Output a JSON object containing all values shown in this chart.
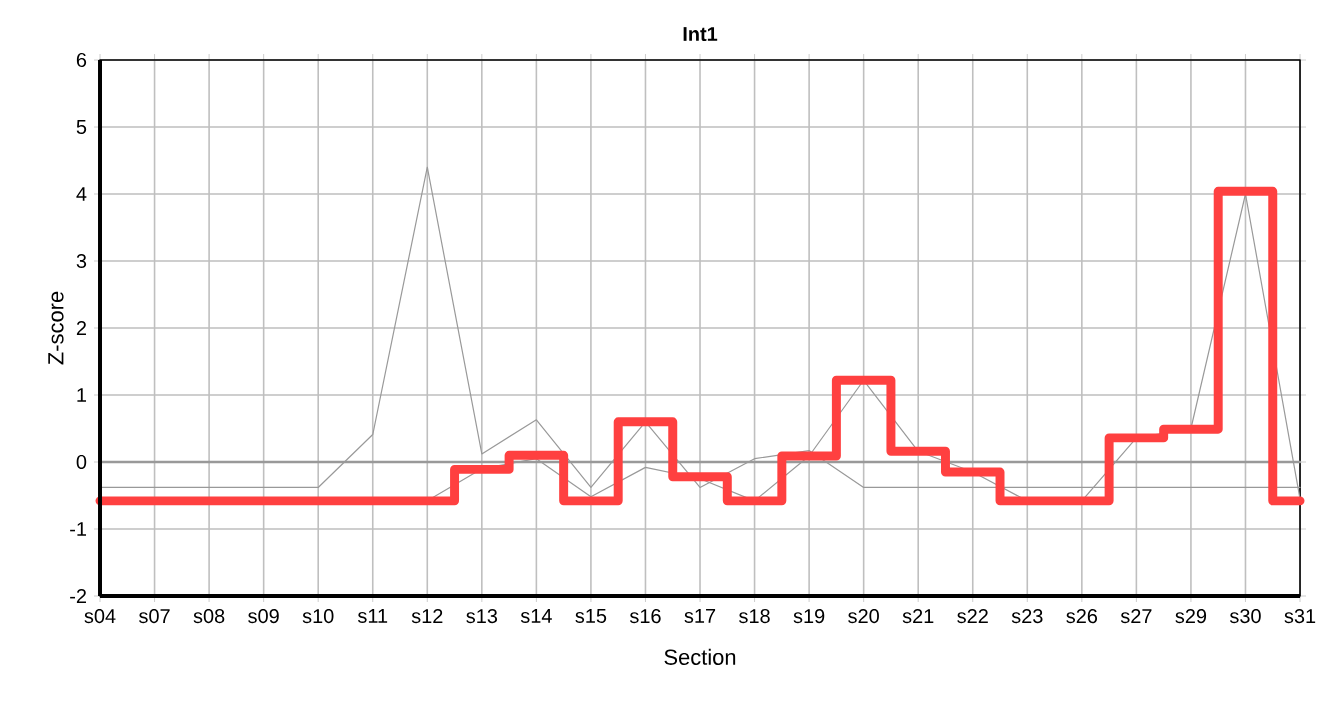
{
  "chart_data": {
    "type": "line",
    "title": "Int1",
    "xlabel": "Section",
    "ylabel": "Z-score",
    "categories": [
      "s04",
      "s07",
      "s08",
      "s09",
      "s10",
      "s11",
      "s12",
      "s13",
      "s14",
      "s15",
      "s16",
      "s17",
      "s18",
      "s19",
      "s20",
      "s21",
      "s22",
      "s23",
      "s26",
      "s27",
      "s29",
      "s30",
      "s31"
    ],
    "series": [
      {
        "color": "#999999",
        "values": [
          -0.38,
          -0.38,
          -0.38,
          -0.38,
          -0.38,
          0.41,
          4.4,
          0.12,
          0.63,
          -0.38,
          0.6,
          -0.38,
          0.05,
          0.17,
          -0.38,
          -0.38,
          -0.38,
          -0.38,
          -0.38,
          -0.38,
          -0.38,
          -0.38,
          -0.38
        ]
      },
      {
        "color": "#999999",
        "values": [
          null,
          null,
          null,
          null,
          null,
          null,
          -0.58,
          -0.1,
          0.05,
          -0.52,
          -0.08,
          -0.25,
          -0.58,
          0.09,
          1.22,
          0.16,
          -0.15,
          -0.58,
          -0.58,
          0.36,
          0.5,
          4.0,
          -0.55
        ]
      },
      {
        "type": "step",
        "color": "#ff4040",
        "values": [
          -0.58,
          -0.58,
          -0.58,
          -0.58,
          -0.58,
          -0.58,
          -0.58,
          -0.11,
          0.1,
          -0.58,
          0.6,
          -0.22,
          -0.58,
          0.09,
          1.22,
          0.16,
          -0.15,
          -0.58,
          -0.58,
          0.36,
          0.49,
          4.04,
          -0.58
        ]
      }
    ],
    "ylim": [
      -2,
      6
    ],
    "yticks": [
      -2,
      -1,
      0,
      1,
      2,
      3,
      4,
      5,
      6
    ],
    "grid": true,
    "ref_lines": [
      {
        "axis": "y",
        "value": 0,
        "color": "#999999"
      }
    ]
  }
}
